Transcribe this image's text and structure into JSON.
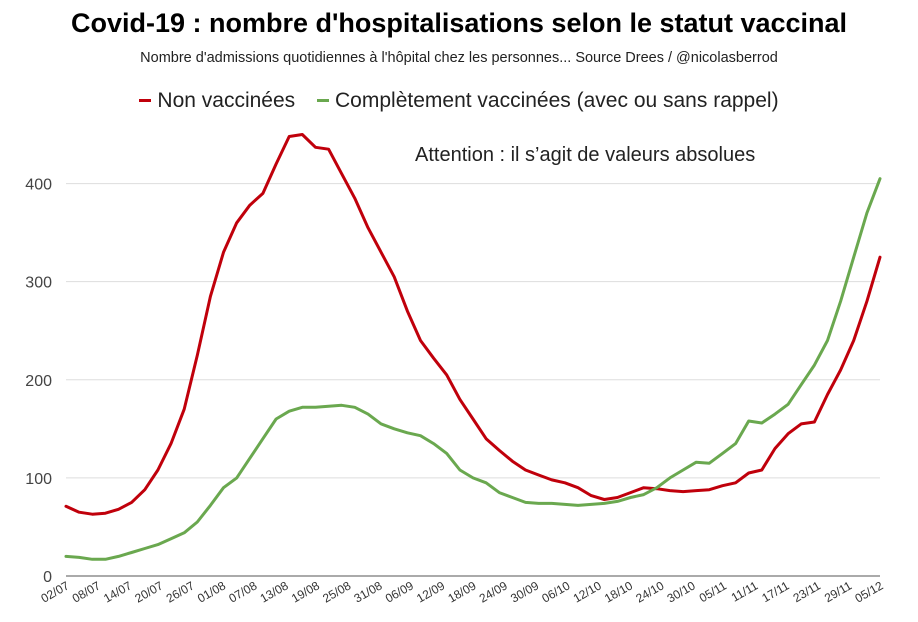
{
  "chart_data": {
    "type": "line",
    "title": "Covid-19 : nombre d'hospitalisations selon le statut vaccinal",
    "subtitle": "Nombre d'admissions quotidiennes à l'hôpital chez les personnes... Source Drees / @nicolasberrod",
    "annotation": "Attention : il s’agit de valeurs absolues",
    "xlabel": "",
    "ylabel": "",
    "ylim": [
      0,
      450
    ],
    "yticks": [
      0,
      100,
      200,
      300,
      400
    ],
    "x_tick_labels": [
      "02/07",
      "08/07",
      "14/07",
      "20/07",
      "26/07",
      "01/08",
      "07/08",
      "13/08",
      "19/08",
      "25/08",
      "31/08",
      "06/09",
      "12/09",
      "18/09",
      "24/09",
      "30/09",
      "06/10",
      "12/10",
      "18/10",
      "24/10",
      "30/10",
      "05/11",
      "11/11",
      "17/11",
      "23/11",
      "29/11",
      "05/12"
    ],
    "grid": true,
    "legend_position": "top",
    "series": [
      {
        "name": "Non vaccinées",
        "color": "#c0000b",
        "values": [
          71,
          65,
          63,
          64,
          68,
          75,
          88,
          108,
          135,
          170,
          225,
          285,
          330,
          360,
          378,
          390,
          420,
          448,
          450,
          437,
          435,
          410,
          385,
          355,
          330,
          305,
          270,
          240,
          222,
          205,
          180,
          160,
          140,
          128,
          117,
          108,
          103,
          98,
          95,
          90,
          82,
          78,
          80,
          85,
          90,
          89,
          87,
          86,
          87,
          88,
          92,
          95,
          105,
          108,
          130,
          145,
          155,
          157,
          185,
          210,
          240,
          280,
          325
        ]
      },
      {
        "name": "Complètement vaccinées (avec ou sans rappel)",
        "color": "#6aa84f",
        "values": [
          20,
          19,
          17,
          17,
          20,
          24,
          28,
          32,
          38,
          44,
          55,
          72,
          90,
          100,
          120,
          140,
          160,
          168,
          172,
          172,
          173,
          174,
          172,
          165,
          155,
          150,
          146,
          143,
          135,
          125,
          108,
          100,
          95,
          85,
          80,
          75,
          74,
          74,
          73,
          72,
          73,
          74,
          76,
          80,
          83,
          90,
          100,
          108,
          116,
          115,
          125,
          135,
          158,
          156,
          165,
          175,
          195,
          215,
          240,
          280,
          325,
          370,
          405
        ]
      }
    ]
  }
}
